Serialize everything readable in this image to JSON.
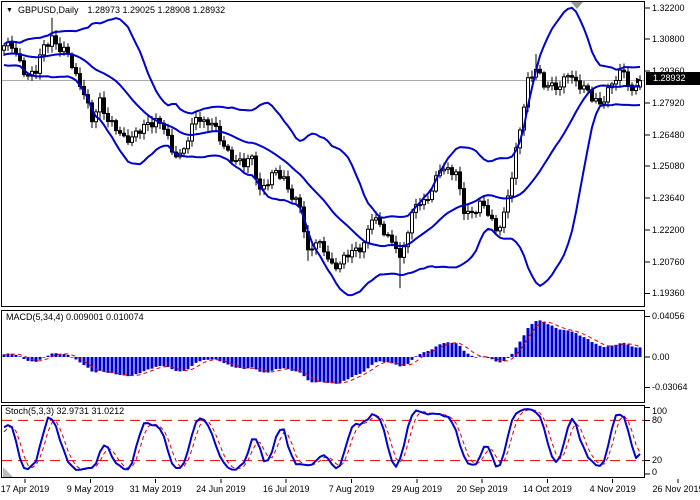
{
  "header": {
    "dropdown_icon": "▼",
    "symbol": "GBPUSD,Daily",
    "ohlc": "1.28973 1.29025 1.28908 1.28932"
  },
  "indicators": {
    "macd_label": "MACD(5,34,4) 0.009001 0.010074",
    "stoch_label": "Stoch(5,3,3) 32.9731 31.0212"
  },
  "price_scale": {
    "labels": [
      "1.32200",
      "1.30800",
      "1.29360",
      "1.27920",
      "1.26480",
      "1.25080",
      "1.23640",
      "1.22200",
      "1.20760",
      "1.19360"
    ],
    "current_price": "1.28932"
  },
  "macd_scale": {
    "labels": [
      "0.04056",
      "0.00",
      "-0.03064"
    ]
  },
  "stoch_scale": {
    "labels": [
      "100",
      "80",
      "20",
      "0"
    ]
  },
  "time_scale": {
    "labels": [
      "17 Apr 2019",
      "9 May 2019",
      "31 May 2019",
      "24 Jun 2019",
      "16 Jul 2019",
      "7 Aug 2019",
      "29 Aug 2019",
      "20 Sep 2019",
      "14 Oct 2019",
      "4 Nov 2019",
      "26 Nov 2019"
    ]
  },
  "colors": {
    "indicator_blue": "#0000CC",
    "signal_red": "#DD0000",
    "level_red": "#DD0000",
    "candle_outline": "#000000",
    "candle_bull_fill": "#FFFFFF",
    "candle_bear_fill": "#000000",
    "bid_line": "#AAAAAA",
    "badge_bg": "#000000",
    "badge_text": "#FFFFFF",
    "frame": "#000000",
    "marker_gray": "#999999"
  },
  "chart_data": {
    "type": "candlestick",
    "title": "GBPUSD Daily candlestick chart with Bollinger Bands(20,2), MACD(5,34,4) and Stochastic(5,3,3)",
    "symbol": "GBPUSD",
    "timeframe": "Daily",
    "last_ohlc": {
      "open": 1.28973,
      "high": 1.29025,
      "low": 1.28908,
      "close": 1.28932
    },
    "price_axis": {
      "min": 1.1936,
      "max": 1.322,
      "tick_step": 0.0144,
      "ticks": [
        1.322,
        1.308,
        1.2936,
        1.2792,
        1.2648,
        1.2508,
        1.2364,
        1.222,
        1.2076,
        1.1936
      ]
    },
    "x_dates": [
      "17 Apr 2019",
      "9 May 2019",
      "31 May 2019",
      "24 Jun 2019",
      "16 Jul 2019",
      "7 Aug 2019",
      "29 Aug 2019",
      "20 Sep 2019",
      "14 Oct 2019",
      "4 Nov 2019",
      "26 Nov 2019"
    ],
    "candles_count": 160,
    "close_anchors": [
      [
        -20,
        1.298
      ],
      [
        -16,
        1.3035
      ],
      [
        -12,
        1.2975
      ],
      [
        -8,
        1.3005
      ],
      [
        -4,
        1.3015
      ],
      [
        0,
        1.304
      ],
      [
        2,
        1.3058
      ],
      [
        4,
        1.2982
      ],
      [
        6,
        1.2905
      ],
      [
        8,
        1.2932
      ],
      [
        10,
        1.3048
      ],
      [
        12,
        1.3092
      ],
      [
        14,
        1.3042
      ],
      [
        16,
        1.3005
      ],
      [
        18,
        1.2902
      ],
      [
        20,
        1.2848
      ],
      [
        22,
        1.2726
      ],
      [
        24,
        1.2792
      ],
      [
        26,
        1.2702
      ],
      [
        28,
        1.2688
      ],
      [
        30,
        1.2642
      ],
      [
        32,
        1.2632
      ],
      [
        34,
        1.2662
      ],
      [
        36,
        1.2697
      ],
      [
        38,
        1.2722
      ],
      [
        40,
        1.2692
      ],
      [
        42,
        1.2562
      ],
      [
        44,
        1.2546
      ],
      [
        46,
        1.2642
      ],
      [
        48,
        1.2742
      ],
      [
        50,
        1.2692
      ],
      [
        52,
        1.2697
      ],
      [
        54,
        1.2642
      ],
      [
        56,
        1.2576
      ],
      [
        58,
        1.2526
      ],
      [
        60,
        1.2512
      ],
      [
        62,
        1.2546
      ],
      [
        64,
        1.2406
      ],
      [
        66,
        1.2442
      ],
      [
        68,
        1.2476
      ],
      [
        70,
        1.2442
      ],
      [
        72,
        1.2382
      ],
      [
        74,
        1.2336
      ],
      [
        76,
        1.2106
      ],
      [
        78,
        1.2162
      ],
      [
        80,
        1.2142
      ],
      [
        82,
        1.2066
      ],
      [
        84,
        1.2062
      ],
      [
        86,
        1.2106
      ],
      [
        88,
        1.2132
      ],
      [
        90,
        1.2166
      ],
      [
        92,
        1.2282
      ],
      [
        94,
        1.2232
      ],
      [
        96,
        1.2182
      ],
      [
        98,
        1.2162
      ],
      [
        99,
        1.2092
      ],
      [
        101,
        1.2216
      ],
      [
        103,
        1.2332
      ],
      [
        105,
        1.2342
      ],
      [
        107,
        1.2412
      ],
      [
        109,
        1.2502
      ],
      [
        111,
        1.2476
      ],
      [
        113,
        1.2476
      ],
      [
        115,
        1.2322
      ],
      [
        117,
        1.2296
      ],
      [
        119,
        1.2332
      ],
      [
        121,
        1.2296
      ],
      [
        123,
        1.2222
      ],
      [
        125,
        1.2296
      ],
      [
        127,
        1.2462
      ],
      [
        129,
        1.2666
      ],
      [
        131,
        1.2892
      ],
      [
        133,
        1.2962
      ],
      [
        135,
        1.2876
      ],
      [
        137,
        1.2856
      ],
      [
        139,
        1.2862
      ],
      [
        141,
        1.2942
      ],
      [
        143,
        1.2886
      ],
      [
        145,
        1.2852
      ],
      [
        147,
        1.2812
      ],
      [
        149,
        1.2792
      ],
      [
        151,
        1.2856
      ],
      [
        153,
        1.2902
      ],
      [
        155,
        1.2926
      ],
      [
        157,
        1.2836
      ],
      [
        159,
        1.2893
      ]
    ],
    "wick_overrides": [
      {
        "i": 12,
        "high": 1.3176
      },
      {
        "i": 76,
        "low": 1.2082
      },
      {
        "i": 99,
        "low": 1.1959
      },
      {
        "i": 133,
        "high": 1.3013
      }
    ],
    "overlays": [
      {
        "name": "Bollinger Bands",
        "period": 20,
        "deviation": 2
      }
    ],
    "panels": [
      {
        "name": "MACD",
        "params": [
          5,
          34,
          4
        ],
        "current_values": [
          0.009001,
          0.010074
        ],
        "axis_ticks": [
          0.04056,
          0.0,
          -0.03064
        ]
      },
      {
        "name": "Stochastic",
        "params": [
          5,
          3,
          3
        ],
        "current_values": [
          32.9731,
          31.0212
        ],
        "levels": [
          80,
          20
        ],
        "axis_ticks": [
          100,
          80,
          20,
          0
        ]
      }
    ]
  }
}
